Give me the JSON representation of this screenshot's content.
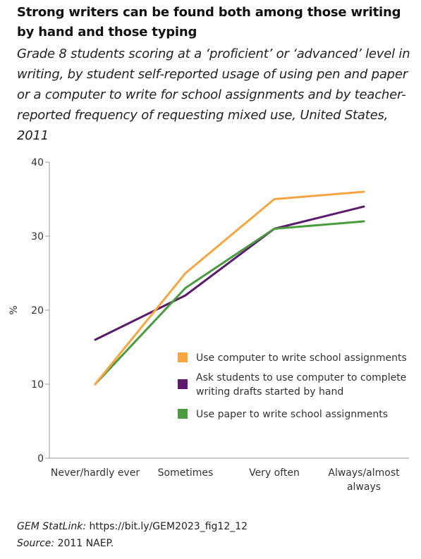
{
  "title": "Strong writers can be found both among those writing by hand and those typing",
  "subtitle": "Grade 8 students scoring at a ‘proficient’ or ‘advanced’ level in writing, by student self-reported usage of using pen and paper or a computer to write for school assignments and by teacher-reported frequency of requesting mixed use, United States, 2011",
  "footer": {
    "statlink_label": "GEM StatLink:",
    "statlink_url": "https://bit.ly/GEM2023_fig12_12",
    "source_label": "Source:",
    "source_text": "2011 NAEP."
  },
  "chart_data": {
    "type": "line",
    "title": "",
    "xlabel": "",
    "ylabel": "%",
    "ylim": [
      0,
      40
    ],
    "yticks": [
      0,
      10,
      20,
      30,
      40
    ],
    "grid": false,
    "legend_position": "right",
    "categories": [
      [
        "Never/hardly ever"
      ],
      [
        "Sometimes"
      ],
      [
        "Very often"
      ],
      [
        "Always/almost",
        "always"
      ]
    ],
    "series": [
      {
        "name": "Use computer to write school assignments",
        "color": "#f7a541",
        "values": [
          10,
          25,
          35,
          36
        ]
      },
      {
        "name": "Ask students to use computer to complete writing drafts started by hand",
        "name_lines": [
          "Ask students to use computer to complete",
          "writing drafts started by hand"
        ],
        "color": "#5b1a6e",
        "values": [
          16,
          22,
          31,
          34
        ]
      },
      {
        "name": "Use paper to write school assignments",
        "color": "#4a9a3e",
        "values": [
          10,
          23,
          31,
          32
        ]
      }
    ]
  }
}
